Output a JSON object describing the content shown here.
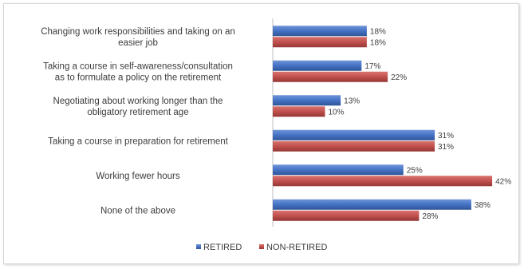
{
  "chart_data": {
    "type": "bar",
    "orientation": "horizontal",
    "categories": [
      [
        "Changing work responsibilities and taking on an",
        "easier job"
      ],
      [
        "Taking a course in self-awareness/consultation",
        "as to formulate a policy on the retirement"
      ],
      [
        "Negotiating about working longer than the",
        "obligatory retirement age"
      ],
      [
        "Taking a course in preparation for retirement"
      ],
      [
        "Working fewer hours"
      ],
      [
        "None of the above"
      ]
    ],
    "series": [
      {
        "name": "RETIRED",
        "color": "#4472c4",
        "values": [
          18,
          17,
          13,
          31,
          25,
          38
        ],
        "labels": [
          "18%",
          "17%",
          "13%",
          "31%",
          "25%",
          "38%"
        ]
      },
      {
        "name": "NON-RETIRED",
        "color": "#c0504d",
        "values": [
          18,
          22,
          10,
          31,
          42,
          28
        ],
        "labels": [
          "18%",
          "22%",
          "10%",
          "31%",
          "42%",
          "28%"
        ]
      }
    ],
    "xlim": [
      0,
      45
    ],
    "grid": false,
    "legend": "bottom"
  }
}
